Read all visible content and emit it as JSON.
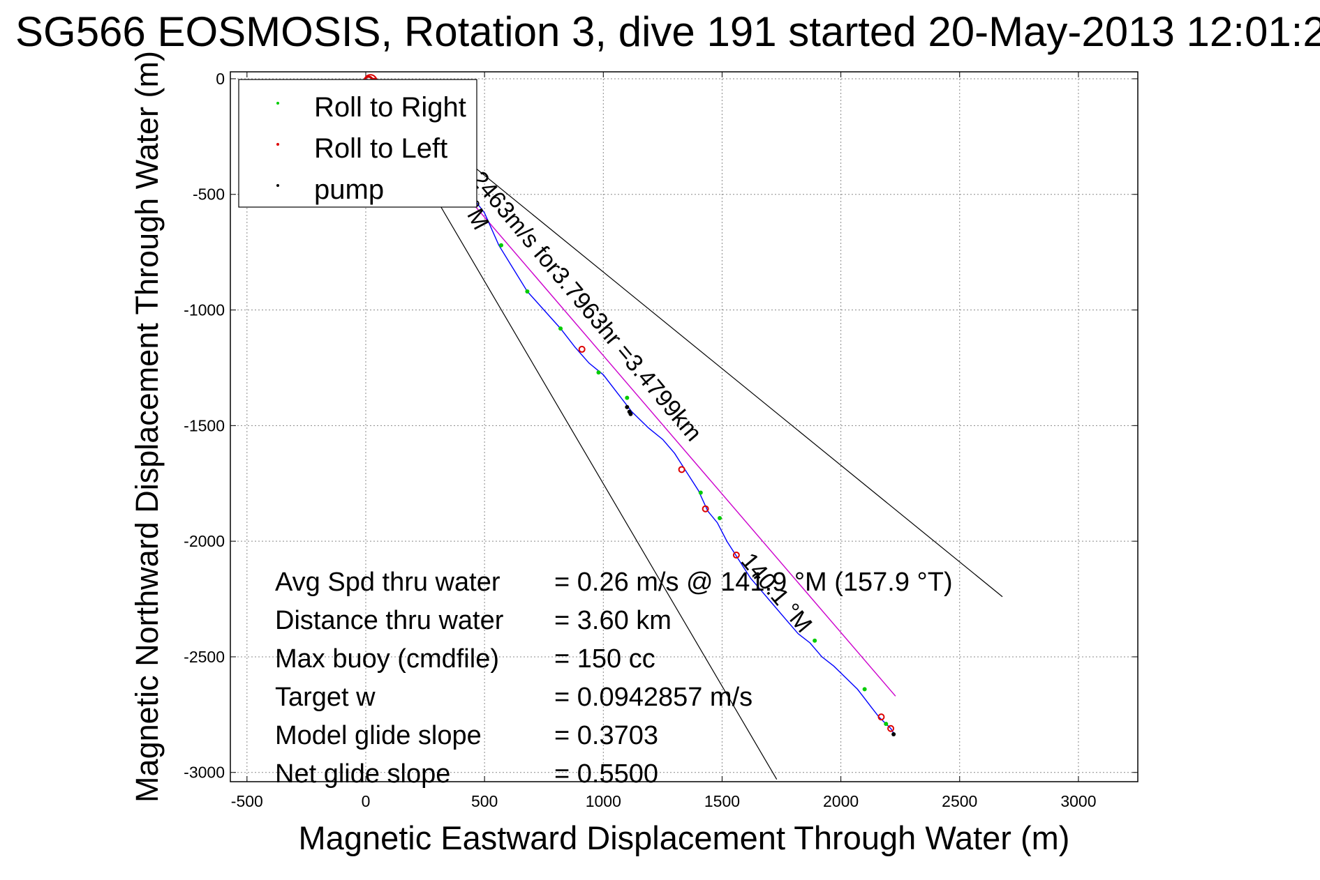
{
  "chart_data": {
    "type": "scatter",
    "title": "SG566 EOSMOSIS, Rotation 3, dive 191 started 20-May-2013 12:01:2",
    "xlabel": "Magnetic Eastward Displacement Through Water (m)",
    "ylabel": "Magnetic Northward Displacement Through Water (m)",
    "xlim": [
      -570,
      3250
    ],
    "ylim": [
      -3040,
      30
    ],
    "xticks": [
      -500,
      0,
      500,
      1000,
      1500,
      2000,
      2500,
      3000
    ],
    "yticks": [
      0,
      -500,
      -1000,
      -1500,
      -2000,
      -2500,
      -3000
    ],
    "xtick_labels": [
      "-500",
      "0",
      "500",
      "1000",
      "1500",
      "2000",
      "2500",
      "3000"
    ],
    "ytick_labels": [
      "0",
      "-500",
      "-1000",
      "-1500",
      "-2000",
      "-2500",
      "-3000"
    ],
    "grid": true,
    "legend_position": "top-left",
    "legend": [
      {
        "label": "Roll to Right",
        "color": "#00cc00"
      },
      {
        "label": "Roll to Left",
        "color": "#dd0000"
      },
      {
        "label": "pump",
        "color": "#000000"
      }
    ],
    "colors": {
      "track": "#0000ff",
      "heading_line": "#cc00cc",
      "bound_lines": "#000000",
      "start_marker": "#cc0000"
    },
    "track": {
      "x": [
        0,
        80,
        180,
        280,
        370,
        440,
        500,
        560,
        620,
        680,
        750,
        820,
        880,
        940,
        1000,
        1060,
        1120,
        1190,
        1250,
        1300,
        1350,
        1400,
        1440,
        1480,
        1520,
        1570,
        1620,
        1670,
        1720,
        1770,
        1820,
        1870,
        1920,
        1970,
        2020,
        2070,
        2100,
        2130,
        2160,
        2190,
        2210,
        2222
      ],
      "y": [
        0,
        -100,
        -210,
        -320,
        -420,
        -500,
        -580,
        -720,
        -820,
        -920,
        -1000,
        -1080,
        -1160,
        -1230,
        -1280,
        -1360,
        -1440,
        -1510,
        -1560,
        -1620,
        -1700,
        -1780,
        -1870,
        -1920,
        -2000,
        -2080,
        -2160,
        -2220,
        -2280,
        -2340,
        -2400,
        -2440,
        -2500,
        -2540,
        -2590,
        -2640,
        -2680,
        -2720,
        -2760,
        -2790,
        -2810,
        -2830
      ]
    },
    "roll_right": {
      "x": [
        570,
        680,
        820,
        980,
        1100,
        1410,
        1490,
        1890,
        2100,
        2190
      ],
      "y": [
        -720,
        -920,
        -1080,
        -1270,
        -1380,
        -1790,
        -1900,
        -2430,
        -2640,
        -2790
      ]
    },
    "roll_left": {
      "x": [
        20,
        35,
        910,
        1330,
        1430,
        1560,
        2170,
        2210
      ],
      "y": [
        -10,
        -20,
        -1170,
        -1690,
        -1860,
        -2060,
        -2760,
        -2810
      ],
      "sizes": [
        9,
        7,
        4,
        4,
        4,
        4,
        4,
        4
      ]
    },
    "pump": {
      "x": [
        1100,
        1110,
        1115,
        2222
      ],
      "y": [
        -1420,
        -1440,
        -1450,
        -2835
      ]
    },
    "heading_line": {
      "x": [
        0,
        2230
      ],
      "y": [
        0,
        -2670
      ]
    },
    "bound_lines": [
      {
        "x": [
          0,
          2680
        ],
        "y": [
          0,
          -2240
        ]
      },
      {
        "x": [
          0,
          1730
        ],
        "y": [
          0,
          -3030
        ]
      }
    ],
    "annotations": [
      "0.2463m/s for3.7963hr =3.4799km",
      "140.1 °M",
      "°M"
    ],
    "stats": [
      {
        "label": "Avg Spd thru water",
        "value": "=  0.26 m/s @ 141.9 °M (157.9 °T)"
      },
      {
        "label": "Distance thru water",
        "value": "=  3.60 km"
      },
      {
        "label": "Max buoy (cmdfile)",
        "value": "= 150 cc"
      },
      {
        "label": "Target w",
        "value": "= 0.0942857 m/s"
      },
      {
        "label": "Model glide slope",
        "value": "= 0.3703"
      },
      {
        "label": "Net glide slope",
        "value": "= 0.5500"
      }
    ]
  }
}
